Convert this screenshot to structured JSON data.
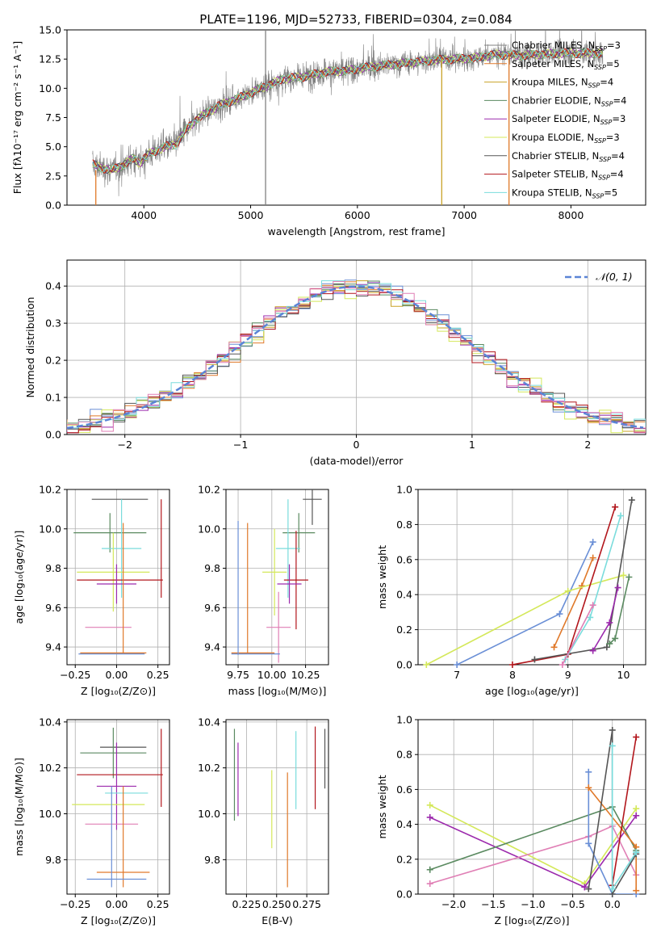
{
  "figure": {
    "title": "PLATE=1196, MJD=52733, FIBERID=0304, z=0.084"
  },
  "colors": {
    "data_gray": "#808080",
    "grid": "#b0b0b0",
    "normal_curve": "#5b84d6",
    "models": {
      "Chabrier MILES": "#6a8fd6",
      "Salpeter MILES": "#e0792a",
      "Kroupa MILES": "#c9a227",
      "Chabrier ELODIE": "#5a8a60",
      "Salpeter ELODIE": "#9c2aad",
      "Kroupa ELODIE": "#d4e85a",
      "Chabrier STELIB": "#555555",
      "Salpeter STELIB": "#b2161c",
      "Kroupa STELIB": "#7adcdc",
      "pink": "#e07fb5"
    }
  },
  "chart_data": [
    {
      "id": "spectrum",
      "type": "line",
      "xlabel": "wavelength [Angstrom, rest frame]",
      "ylabel": "Flux [fλ10⁻¹⁷ erg cm⁻² s⁻¹ A⁻¹]",
      "xlim": [
        3280,
        8700
      ],
      "ylim": [
        0,
        15
      ],
      "xticks": [
        4000,
        5000,
        6000,
        7000,
        8000
      ],
      "yticks": [
        0.0,
        2.5,
        5.0,
        7.5,
        10.0,
        12.5,
        15.0
      ],
      "ytick_labels": [
        "0.0",
        "2.5",
        "5.0",
        "7.5",
        "10.0",
        "12.5",
        "15.0"
      ],
      "legend": [
        {
          "label": "Chabrier MILES, N",
          "sub": "SSP",
          "suffix": "=3",
          "color": "#808080"
        },
        {
          "label": "Salpeter MILES, N",
          "sub": "SSP",
          "suffix": "=5",
          "color": "#e0792a"
        },
        {
          "label": "Kroupa MILES, N",
          "sub": "SSP",
          "suffix": "=4",
          "color": "#c9a227"
        },
        {
          "label": "Chabrier ELODIE, N",
          "sub": "SSP",
          "suffix": "=4",
          "color": "#5a8a60"
        },
        {
          "label": "Salpeter ELODIE, N",
          "sub": "SSP",
          "suffix": "=3",
          "color": "#9c2aad"
        },
        {
          "label": "Kroupa ELODIE, N",
          "sub": "SSP",
          "suffix": "=3",
          "color": "#d4e85a"
        },
        {
          "label": "Chabrier STELIB, N",
          "sub": "SSP",
          "suffix": "=4",
          "color": "#555555"
        },
        {
          "label": "Salpeter STELIB, N",
          "sub": "SSP",
          "suffix": "=4",
          "color": "#b2161c"
        },
        {
          "label": "Kroupa STELIB, N",
          "sub": "SSP",
          "suffix": "=5",
          "color": "#7adcdc"
        }
      ],
      "continuum_knots": [
        [
          3520,
          3.5
        ],
        [
          3600,
          3.2
        ],
        [
          3700,
          3.0
        ],
        [
          3800,
          3.4
        ],
        [
          3900,
          4.0
        ],
        [
          3960,
          3.6
        ],
        [
          4050,
          4.4
        ],
        [
          4200,
          5.0
        ],
        [
          4300,
          5.2
        ],
        [
          4400,
          6.5
        ],
        [
          4500,
          7.4
        ],
        [
          4700,
          8.5
        ],
        [
          4900,
          9.2
        ],
        [
          5100,
          10.0
        ],
        [
          5300,
          10.8
        ],
        [
          5500,
          11.0
        ],
        [
          5700,
          11.4
        ],
        [
          5900,
          11.5
        ],
        [
          6100,
          11.8
        ],
        [
          6300,
          12.0
        ],
        [
          6500,
          12.2
        ],
        [
          6700,
          12.4
        ],
        [
          6900,
          12.5
        ],
        [
          7100,
          12.6
        ],
        [
          7300,
          12.9
        ],
        [
          7500,
          12.8
        ],
        [
          7700,
          12.9
        ],
        [
          7900,
          13.0
        ],
        [
          8100,
          13.0
        ],
        [
          8300,
          13.0
        ]
      ],
      "spikes": [
        {
          "x": 5140,
          "y0": 0,
          "y1": 15,
          "color": "#808080"
        },
        {
          "x": 6790,
          "y0": 0,
          "y1": 12.5,
          "color": "#c9a227"
        },
        {
          "x": 7420,
          "y0": 0,
          "y1": 13.0,
          "color": "#e0792a"
        },
        {
          "x": 3550,
          "y0": 0,
          "y1": 3.0,
          "color": "#e0792a"
        }
      ]
    },
    {
      "id": "residuals",
      "type": "histogram",
      "xlabel": "(data-model)/error",
      "ylabel": "Normed distribution",
      "xlim": [
        -2.5,
        2.5
      ],
      "ylim": [
        0,
        0.47
      ],
      "xticks": [
        -2,
        -1,
        0,
        1,
        2
      ],
      "xtick_labels": [
        "−2",
        "−1",
        "0",
        "1",
        "2"
      ],
      "yticks": [
        0.0,
        0.1,
        0.2,
        0.3,
        0.4
      ],
      "ytick_labels": [
        "0.0",
        "0.1",
        "0.2",
        "0.3",
        "0.4"
      ],
      "legend": [
        {
          "label": "𝒩(0, 1)",
          "color": "#5b84d6"
        }
      ],
      "bin_width": 0.1
    },
    {
      "id": "age_vs_Z",
      "type": "errorbar",
      "xlabel": "Z [log₁₀(Z/Z⊙)]",
      "ylabel": "age  [log₁₀(age/yr)]",
      "xlim": [
        -0.3,
        0.32
      ],
      "ylim": [
        9.31,
        10.2
      ],
      "xticks": [
        -0.25,
        0.0,
        0.25
      ],
      "xtick_labels": [
        "−0.25",
        "0.00",
        "0.25"
      ],
      "yticks": [
        9.4,
        9.6,
        9.8,
        10.0,
        10.2
      ],
      "ytick_labels": [
        "9.4",
        "9.6",
        "9.8",
        "10.0",
        "10.2"
      ],
      "points": [
        {
          "x": 0.02,
          "y": 10.15,
          "xerr": 0.17,
          "yerr": 0.0,
          "color": "#555555"
        },
        {
          "x": -0.04,
          "y": 9.98,
          "xerr": 0.22,
          "yerr": 0.1,
          "color": "#5a8a60"
        },
        {
          "x": 0.03,
          "y": 9.9,
          "xerr": 0.12,
          "yerr": 0.25,
          "color": "#7adcdc"
        },
        {
          "x": -0.02,
          "y": 9.78,
          "xerr": 0.22,
          "yerr": 0.2,
          "color": "#d4e85a"
        },
        {
          "x": 0.02,
          "y": 9.74,
          "xerr": 0.26,
          "yerr": 0.0,
          "color": "#b2161c"
        },
        {
          "x": 0.0,
          "y": 9.72,
          "xerr": 0.12,
          "yerr": 0.1,
          "color": "#9c2aad"
        },
        {
          "x": -0.05,
          "y": 9.5,
          "xerr": 0.14,
          "yerr": 0.0,
          "color": "#e07fb5"
        },
        {
          "x": 0.27,
          "y": 9.9,
          "xerr": 0.0,
          "yerr": 0.25,
          "color": "#b2161c"
        },
        {
          "x": 0.04,
          "y": 9.7,
          "xerr": 0.0,
          "yerr": 0.33,
          "color": "#e0792a"
        },
        {
          "x": -0.02,
          "y": 9.37,
          "xerr": 0.2,
          "yerr": 0.0,
          "color": "#e0792a"
        },
        {
          "x": -0.03,
          "y": 9.365,
          "xerr": 0.2,
          "yerr": 0.0,
          "color": "#6a8fd6"
        }
      ]
    },
    {
      "id": "age_vs_mass",
      "type": "errorbar",
      "xlabel": "mass [log₁₀(M/M⊙)]",
      "ylabel": "",
      "xlim": [
        9.66,
        10.42
      ],
      "ylim": [
        9.31,
        10.2
      ],
      "xticks": [
        9.75,
        10.0,
        10.25
      ],
      "xtick_labels": [
        "9.75",
        "10.00",
        "10.25"
      ],
      "yticks": [
        9.4,
        9.6,
        9.8,
        10.0,
        10.2
      ],
      "ytick_labels": [
        "9.4",
        "9.6",
        "9.8",
        "10.0",
        "10.2"
      ],
      "points": [
        {
          "x": 10.3,
          "y": 10.15,
          "xerr": 0.07,
          "yerr": 0.13,
          "color": "#555555"
        },
        {
          "x": 10.2,
          "y": 9.98,
          "xerr": 0.12,
          "yerr": 0.1,
          "color": "#5a8a60"
        },
        {
          "x": 10.12,
          "y": 9.9,
          "xerr": 0.09,
          "yerr": 0.25,
          "color": "#7adcdc"
        },
        {
          "x": 10.02,
          "y": 9.78,
          "xerr": 0.09,
          "yerr": 0.22,
          "color": "#d4e85a"
        },
        {
          "x": 10.18,
          "y": 9.74,
          "xerr": 0.09,
          "yerr": 0.25,
          "color": "#b2161c"
        },
        {
          "x": 10.13,
          "y": 9.72,
          "xerr": 0.09,
          "yerr": 0.1,
          "color": "#9c2aad"
        },
        {
          "x": 10.05,
          "y": 9.5,
          "xerr": 0.09,
          "yerr": 0.18,
          "color": "#e07fb5"
        },
        {
          "x": 9.82,
          "y": 9.7,
          "xerr": 0.0,
          "yerr": 0.33,
          "color": "#e0792a"
        },
        {
          "x": 9.86,
          "y": 9.37,
          "xerr": 0.16,
          "yerr": 0.0,
          "color": "#e0792a"
        },
        {
          "x": 9.75,
          "y": 9.7,
          "xerr": 0.0,
          "yerr": 0.34,
          "color": "#6a8fd6"
        },
        {
          "x": 9.88,
          "y": 9.365,
          "xerr": 0.18,
          "yerr": 0.0,
          "color": "#6a8fd6"
        }
      ]
    },
    {
      "id": "weight_vs_age",
      "type": "line",
      "xlabel": "age  [log₁₀(age/yr)]",
      "ylabel": "mass weight",
      "xlim": [
        6.3,
        10.4
      ],
      "ylim": [
        0,
        1.0
      ],
      "xticks": [
        7,
        8,
        9,
        10
      ],
      "xtick_labels": [
        "7",
        "8",
        "9",
        "10"
      ],
      "yticks": [
        0.0,
        0.2,
        0.4,
        0.6,
        0.8,
        1.0
      ],
      "ytick_labels": [
        "0.0",
        "0.2",
        "0.4",
        "0.6",
        "0.8",
        "1.0"
      ],
      "series": [
        {
          "color": "#6a8fd6",
          "x": [
            7.0,
            8.85,
            9.45
          ],
          "y": [
            0.0,
            0.29,
            0.7
          ]
        },
        {
          "color": "#e0792a",
          "x": [
            8.75,
            9.25,
            9.45
          ],
          "y": [
            0.1,
            0.45,
            0.61
          ]
        },
        {
          "color": "#d4e85a",
          "x": [
            6.45,
            9.0,
            10.0
          ],
          "y": [
            0.0,
            0.42,
            0.51
          ]
        },
        {
          "color": "#b2161c",
          "x": [
            8.0,
            9.0,
            9.85
          ],
          "y": [
            0.0,
            0.06,
            0.9
          ]
        },
        {
          "color": "#555555",
          "x": [
            8.4,
            9.7,
            10.15
          ],
          "y": [
            0.03,
            0.1,
            0.94
          ]
        },
        {
          "color": "#5a8a60",
          "x": [
            9.75,
            9.85,
            10.1
          ],
          "y": [
            0.12,
            0.15,
            0.5
          ]
        },
        {
          "color": "#9c2aad",
          "x": [
            9.45,
            9.75,
            9.9
          ],
          "y": [
            0.08,
            0.24,
            0.44
          ]
        },
        {
          "color": "#7adcdc",
          "x": [
            8.95,
            9.4,
            9.95
          ],
          "y": [
            0.03,
            0.27,
            0.85
          ]
        },
        {
          "color": "#e07fb5",
          "x": [
            8.9,
            9.45
          ],
          "y": [
            0.0,
            0.34
          ]
        }
      ]
    },
    {
      "id": "mass_vs_Z",
      "type": "errorbar",
      "xlabel": "Z [log₁₀(Z/Z⊙)]",
      "ylabel": "mass [log₁₀(M/M⊙)]",
      "xlim": [
        -0.3,
        0.32
      ],
      "ylim": [
        9.65,
        10.41
      ],
      "xticks": [
        -0.25,
        0.0,
        0.25
      ],
      "xtick_labels": [
        "−0.25",
        "0.00",
        "0.25"
      ],
      "yticks": [
        9.8,
        10.0,
        10.2,
        10.4
      ],
      "ytick_labels": [
        "9.8",
        "10.0",
        "10.2",
        "10.4"
      ],
      "points": [
        {
          "x": 0.04,
          "y": 10.29,
          "xerr": 0.14,
          "yerr": 0.0,
          "color": "#555555"
        },
        {
          "x": -0.02,
          "y": 10.265,
          "xerr": 0.2,
          "yerr": 0.11,
          "color": "#5a8a60"
        },
        {
          "x": 0.02,
          "y": 10.17,
          "xerr": 0.26,
          "yerr": 0.0,
          "color": "#b2161c"
        },
        {
          "x": 0.0,
          "y": 10.12,
          "xerr": 0.12,
          "yerr": 0.19,
          "color": "#9c2aad"
        },
        {
          "x": 0.06,
          "y": 10.09,
          "xerr": 0.13,
          "yerr": 0.0,
          "color": "#7adcdc"
        },
        {
          "x": -0.05,
          "y": 10.04,
          "xerr": 0.22,
          "yerr": 0.0,
          "color": "#d4e85a"
        },
        {
          "x": -0.03,
          "y": 9.955,
          "xerr": 0.16,
          "yerr": 0.0,
          "color": "#e07fb5"
        },
        {
          "x": 0.27,
          "y": 10.2,
          "xerr": 0.0,
          "yerr": 0.17,
          "color": "#b2161c"
        },
        {
          "x": 0.04,
          "y": 9.9,
          "xerr": 0.0,
          "yerr": 0.22,
          "color": "#e0792a"
        },
        {
          "x": 0.04,
          "y": 9.745,
          "xerr": 0.16,
          "yerr": 0.0,
          "color": "#e0792a"
        },
        {
          "x": -0.03,
          "y": 9.9,
          "xerr": 0.0,
          "yerr": 0.22,
          "color": "#6a8fd6"
        },
        {
          "x": 0.0,
          "y": 9.715,
          "xerr": 0.18,
          "yerr": 0.0,
          "color": "#6a8fd6"
        }
      ]
    },
    {
      "id": "mass_vs_ebv",
      "type": "errorbar",
      "xlabel": "E(B-V)",
      "ylabel": "",
      "xlim": [
        0.208,
        0.293
      ],
      "ylim": [
        9.65,
        10.41
      ],
      "xticks": [
        0.225,
        0.25,
        0.275
      ],
      "xtick_labels": [
        "0.225",
        "0.250",
        "0.275"
      ],
      "yticks": [
        9.8,
        10.0,
        10.2,
        10.4
      ],
      "ytick_labels": [
        "9.8",
        "10.0",
        "10.2",
        "10.4"
      ],
      "points": [
        {
          "x": 0.215,
          "y": 10.17,
          "xerr": 0.0,
          "yerr": 0.2,
          "color": "#5a8a60"
        },
        {
          "x": 0.218,
          "y": 10.15,
          "xerr": 0.0,
          "yerr": 0.16,
          "color": "#9c2aad"
        },
        {
          "x": 0.246,
          "y": 10.02,
          "xerr": 0.0,
          "yerr": 0.17,
          "color": "#d4e85a"
        },
        {
          "x": 0.259,
          "y": 9.93,
          "xerr": 0.0,
          "yerr": 0.25,
          "color": "#e0792a"
        },
        {
          "x": 0.266,
          "y": 10.19,
          "xerr": 0.0,
          "yerr": 0.17,
          "color": "#7adcdc"
        },
        {
          "x": 0.282,
          "y": 10.2,
          "xerr": 0.0,
          "yerr": 0.18,
          "color": "#b2161c"
        },
        {
          "x": 0.29,
          "y": 10.24,
          "xerr": 0.0,
          "yerr": 0.13,
          "color": "#555555"
        }
      ]
    },
    {
      "id": "weight_vs_Z",
      "type": "line",
      "xlabel": "Z [log₁₀(Z/Z⊙)]",
      "ylabel": "mass weight",
      "xlim": [
        -2.45,
        0.42
      ],
      "ylim": [
        0,
        1.0
      ],
      "xticks": [
        -2.0,
        -1.5,
        -1.0,
        -0.5,
        0.0
      ],
      "xtick_labels": [
        "−2.0",
        "−1.5",
        "−1.0",
        "−0.5",
        "0.0"
      ],
      "yticks": [
        0.0,
        0.2,
        0.4,
        0.6,
        0.8,
        1.0
      ],
      "ytick_labels": [
        "0.0",
        "0.2",
        "0.4",
        "0.6",
        "0.8",
        "1.0"
      ],
      "series": [
        {
          "color": "#d4e85a",
          "x": [
            -2.3,
            -0.35,
            0.3
          ],
          "y": [
            0.51,
            0.06,
            0.49
          ]
        },
        {
          "color": "#9c2aad",
          "x": [
            -2.3,
            -0.35,
            0.3
          ],
          "y": [
            0.44,
            0.04,
            0.45
          ]
        },
        {
          "color": "#5a8a60",
          "x": [
            -2.3,
            0.0,
            0.3
          ],
          "y": [
            0.14,
            0.5,
            0.25
          ]
        },
        {
          "color": "#e07fb5",
          "x": [
            -2.3,
            -0.3,
            0.0,
            0.3
          ],
          "y": [
            0.06,
            0.33,
            0.39,
            0.11
          ]
        },
        {
          "color": "#6a8fd6",
          "x": [
            -0.3,
            -0.3,
            0.0,
            0.3
          ],
          "y": [
            0.7,
            0.29,
            0.0,
            0.0
          ]
        },
        {
          "color": "#e0792a",
          "x": [
            -0.3,
            0.3,
            0.3
          ],
          "y": [
            0.61,
            0.27,
            0.02
          ]
        },
        {
          "color": "#555555",
          "x": [
            -0.3,
            0.0,
            0.0,
            0.3
          ],
          "y": [
            0.03,
            0.94,
            0.0,
            0.23
          ]
        },
        {
          "color": "#b2161c",
          "x": [
            0.0,
            0.3
          ],
          "y": [
            0.05,
            0.9
          ]
        },
        {
          "color": "#7adcdc",
          "x": [
            0.0,
            0.0,
            0.3
          ],
          "y": [
            0.85,
            0.03,
            0.24
          ]
        }
      ]
    }
  ]
}
